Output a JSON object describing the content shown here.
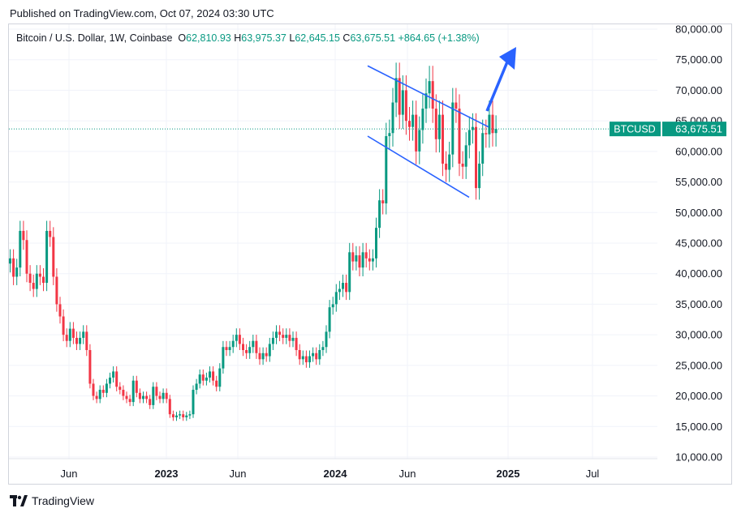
{
  "header": {
    "published": "Published on TradingView.com, Oct 07, 2024 03:30 UTC"
  },
  "legend": {
    "symbol": "Bitcoin / U.S. Dollar, 1W, Coinbase",
    "open_label": "O",
    "open": "62,810.93",
    "high_label": "H",
    "high": "63,975.37",
    "low_label": "L",
    "low": "62,645.15",
    "close_label": "C",
    "close": "63,675.51",
    "change": "+864.65 (+1.38%)"
  },
  "price_tag": {
    "ticker": "BTCUSD",
    "price": "63,675.51"
  },
  "footer": {
    "brand": "TradingView"
  },
  "colors": {
    "up": "#089981",
    "down": "#f23645",
    "channel": "#2962ff",
    "arrow": "#2962ff"
  },
  "chart_data": {
    "type": "candlestick",
    "timeframe": "1W",
    "y_axis": {
      "min": 10000,
      "max": 80000,
      "side": "right",
      "ticks": [
        "80,000.00",
        "75,000.00",
        "70,000.00",
        "65,000.00",
        "60,000.00",
        "55,000.00",
        "50,000.00",
        "45,000.00",
        "40,000.00",
        "35,000.00",
        "30,000.00",
        "25,000.00",
        "20,000.00",
        "15,000.00",
        "10,000.00"
      ]
    },
    "x_axis": {
      "ticks": [
        {
          "label": "Jun",
          "bold": false
        },
        {
          "label": "2023",
          "bold": true
        },
        {
          "label": "Jun",
          "bold": false
        },
        {
          "label": "2024",
          "bold": true
        },
        {
          "label": "Jun",
          "bold": false
        },
        {
          "label": "2025",
          "bold": true
        },
        {
          "label": "Jul",
          "bold": false
        }
      ]
    },
    "last_close": 63675.51,
    "closes": [
      42500,
      39500,
      41000,
      47000,
      45500,
      40000,
      38500,
      37500,
      40000,
      39500,
      38500,
      47000,
      46000,
      39500,
      35000,
      33000,
      30000,
      29000,
      31000,
      29500,
      28500,
      29500,
      30500,
      27500,
      22000,
      20000,
      19500,
      21000,
      20500,
      22000,
      23000,
      24000,
      21500,
      21000,
      20000,
      19500,
      19000,
      22500,
      20500,
      19500,
      20000,
      19500,
      18500,
      21500,
      20000,
      19500,
      20500,
      19500,
      17000,
      16500,
      16800,
      17000,
      16500,
      16800,
      17000,
      21000,
      22000,
      23500,
      22500,
      23000,
      24000,
      22500,
      21500,
      24500,
      28000,
      27500,
      28000,
      29000,
      30000,
      28500,
      27500,
      27000,
      28000,
      29000,
      27000,
      26000,
      27000,
      26500,
      28500,
      29500,
      30500,
      30000,
      29500,
      30000,
      29000,
      29500,
      27500,
      26000,
      26500,
      25500,
      26500,
      27000,
      26000,
      27500,
      28000,
      30500,
      34500,
      35000,
      37000,
      37500,
      38500,
      37000,
      43500,
      42000,
      43000,
      41000,
      43500,
      42500,
      42000,
      42500,
      47500,
      52000,
      51500,
      62500,
      63000,
      68000,
      72000,
      66000,
      70000,
      65000,
      64000,
      66000,
      60000,
      63500,
      67000,
      69500,
      71500,
      67000,
      62000,
      66000,
      58000,
      57000,
      59500,
      68000,
      67000,
      58000,
      57500,
      61000,
      63500,
      64000,
      54000,
      58000,
      63000,
      62800,
      66000,
      63000,
      63675.51
    ],
    "channel": {
      "upper": [
        {
          "date": "2024-03",
          "price": 74000
        },
        {
          "date": "2024-10",
          "price": 64000
        }
      ],
      "lower": [
        {
          "date": "2024-03",
          "price": 62500
        },
        {
          "date": "2024-10",
          "price": 52500
        }
      ]
    }
  }
}
